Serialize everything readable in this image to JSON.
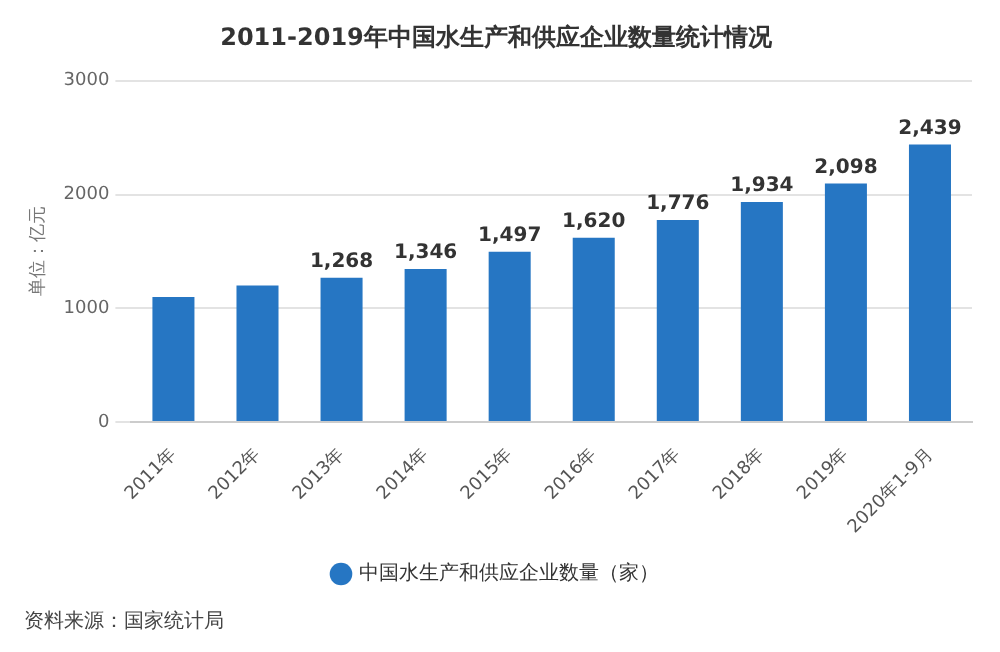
{
  "chart_data": {
    "type": "bar",
    "title": "2011-2019年中国水生产和供应企业数量统计情况",
    "ylabel": "单位：亿元",
    "categories": [
      "2011年",
      "2012年",
      "2013年",
      "2014年",
      "2015年",
      "2016年",
      "2017年",
      "2018年",
      "2019年",
      "2020年1-9月"
    ],
    "series": [
      {
        "name": "中国水生产和供应企业数量（家）",
        "color": "#2676c3",
        "values": [
          1100,
          1200,
          1268,
          1346,
          1497,
          1620,
          1776,
          1934,
          2098,
          2439
        ],
        "value_labels": [
          null,
          null,
          "1,268",
          "1,346",
          "1,497",
          "1,620",
          "1,776",
          "1,934",
          "2,098",
          "2,439"
        ]
      }
    ],
    "ylim": [
      0,
      3000
    ],
    "yticks": [
      0,
      1000,
      2000,
      3000
    ],
    "grid": "y",
    "legend": "bottom",
    "annotations": [
      "资料来源：国家统计局"
    ]
  }
}
